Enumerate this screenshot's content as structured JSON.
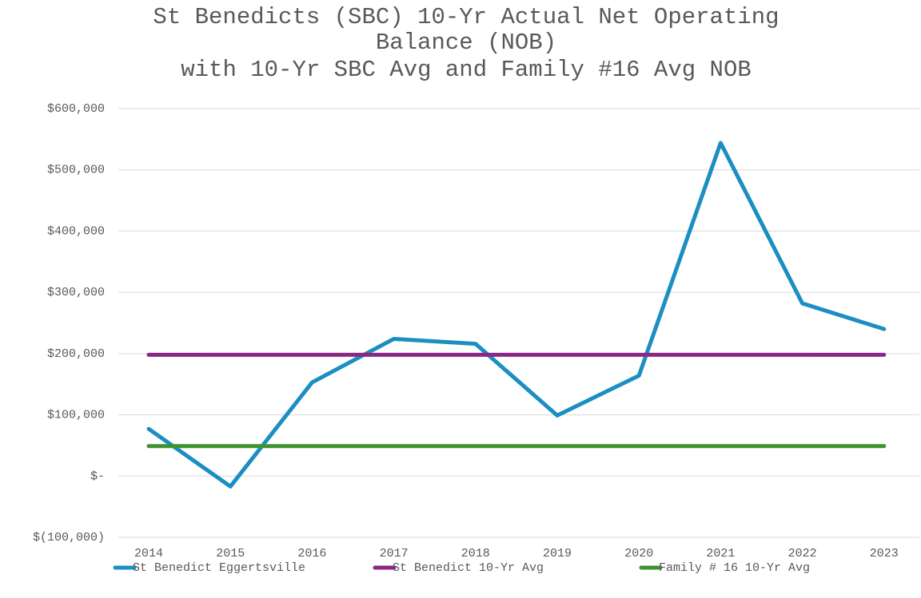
{
  "chart_data": {
    "type": "line",
    "title": "St Benedicts (SBC) 10-Yr Actual Net Operating Balance (NOB)",
    "subtitle": "with 10-Yr SBC Avg and Family #16 Avg NOB",
    "categories": [
      "2014",
      "2015",
      "2016",
      "2017",
      "2018",
      "2019",
      "2020",
      "2021",
      "2022",
      "2023"
    ],
    "series": [
      {
        "name": "St Benedict Eggertsville",
        "color": "#1b8ec2",
        "values": [
          77000,
          -17000,
          153000,
          224000,
          216000,
          99000,
          164000,
          544000,
          282000,
          240000
        ]
      },
      {
        "name": "St Benedict 10-Yr Avg",
        "color": "#8b2886",
        "values": [
          198000,
          198000,
          198000,
          198000,
          198000,
          198000,
          198000,
          198000,
          198000,
          198000
        ]
      },
      {
        "name": "Family # 16 10-Yr Avg",
        "color": "#3f9230",
        "values": [
          49000,
          49000,
          49000,
          49000,
          49000,
          49000,
          49000,
          49000,
          49000,
          49000
        ]
      }
    ],
    "ylim": [
      -100000,
      600000
    ],
    "yticks": [
      {
        "value": -100000,
        "label": "$(100,000)"
      },
      {
        "value": 0,
        "label": "$-"
      },
      {
        "value": 100000,
        "label": "$100,000"
      },
      {
        "value": 200000,
        "label": "$200,000"
      },
      {
        "value": 300000,
        "label": "$300,000"
      },
      {
        "value": 400000,
        "label": "$400,000"
      },
      {
        "value": 500000,
        "label": "$500,000"
      },
      {
        "value": 600000,
        "label": "$600,000"
      }
    ],
    "grid": true,
    "legend": "bottom"
  }
}
